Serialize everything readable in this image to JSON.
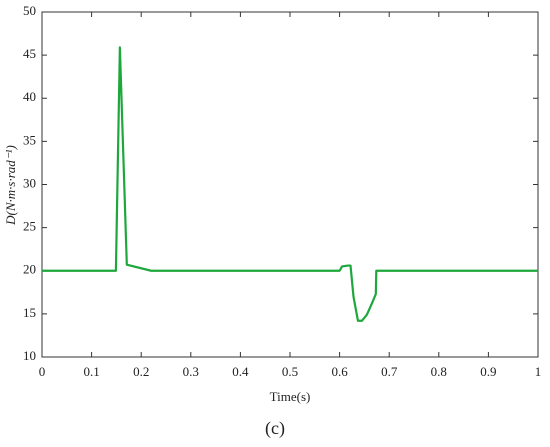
{
  "chart_data": {
    "type": "line",
    "xlabel": "Time(s)",
    "ylabel": "D(N·m·s·rad⁻¹)",
    "caption": "(c)",
    "x": [
      0,
      0.149,
      0.157,
      0.171,
      0.22,
      0.6,
      0.605,
      0.617,
      0.622,
      0.628,
      0.637,
      0.645,
      0.655,
      0.665,
      0.673,
      0.674,
      1
    ],
    "values": [
      20,
      20,
      45.9,
      20.7,
      20,
      20,
      20.5,
      20.6,
      20.6,
      17,
      14.2,
      14.2,
      14.9,
      16.2,
      17.3,
      20,
      20
    ],
    "color": "#1ea83c",
    "xlim": [
      0,
      1
    ],
    "ylim": [
      10,
      50
    ],
    "xticks": [
      0,
      0.1,
      0.2,
      0.3,
      0.4,
      0.5,
      0.6,
      0.7,
      0.8,
      0.9,
      1
    ],
    "yticks": [
      10,
      15,
      20,
      25,
      30,
      35,
      40,
      45,
      50
    ],
    "grid": false
  }
}
